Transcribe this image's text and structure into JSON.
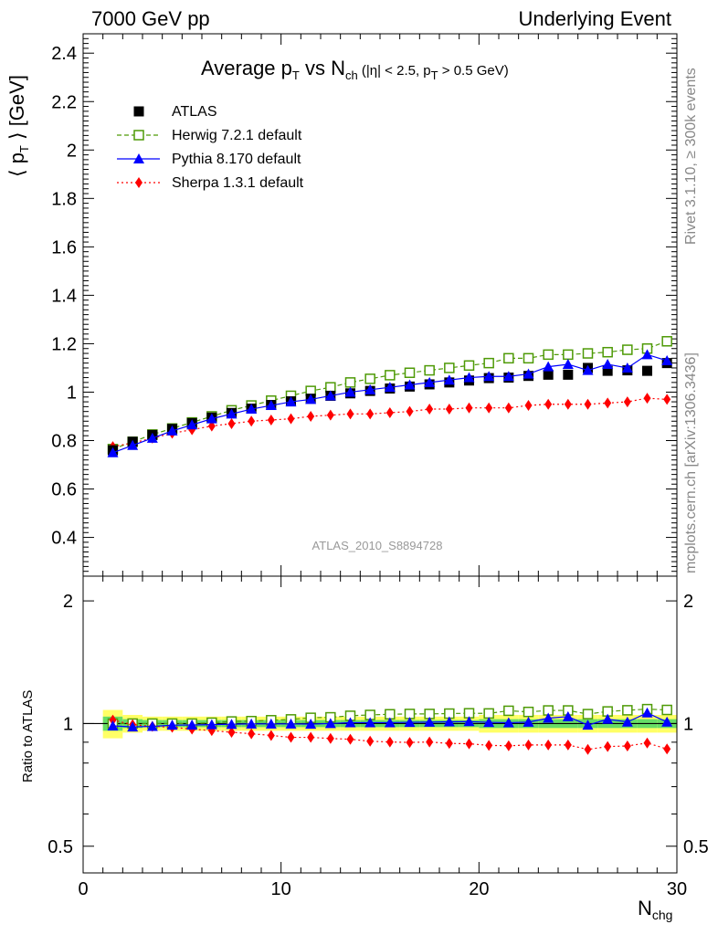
{
  "header": {
    "left": "7000 GeV pp",
    "right": "Underlying Event"
  },
  "side_labels": {
    "top": "Rivet 3.1.10, ≥ 300k events",
    "bottom": "mcplots.cern.ch [arXiv:1306.3436]"
  },
  "watermark": "ATLAS_2010_S8894728",
  "title": {
    "main": "Average p",
    "main_sub": "T",
    "vs": " vs N",
    "vs_sub": "ch",
    "cuts_a": " (|η| < 2.5, p",
    "cuts_sub": "T",
    "cuts_b": " > 0.5 GeV)"
  },
  "axis_labels": {
    "y_top_a": "⟨ p",
    "y_top_sub": "T",
    "y_top_b": " ⟩ [GeV]",
    "y_bottom": "Ratio to ATLAS",
    "x_main": "N",
    "x_sub": "chg"
  },
  "colors": {
    "atlas": "#000000",
    "herwig": "#4e9a06",
    "pythia": "#0000ff",
    "sherpa": "#ff0000",
    "band_inner": "#66dd66",
    "band_outer": "#ffff66"
  },
  "chart_data": [
    {
      "type": "scatter",
      "title": "Average pT vs Nch (|η| < 2.5, pT > 0.5 GeV)",
      "xlabel": "Nchg",
      "ylabel": "⟨ pT ⟩ [GeV]",
      "xlim": [
        0,
        30
      ],
      "ylim": [
        0.24,
        2.48
      ],
      "x_ticks": [
        0,
        10,
        20,
        30
      ],
      "y_ticks": [
        0.4,
        0.6,
        0.8,
        1.0,
        1.2,
        1.4,
        1.6,
        1.8,
        2.0,
        2.2,
        2.4
      ],
      "legend_position": "top-left",
      "x": [
        1.5,
        2.5,
        3.5,
        4.5,
        5.5,
        6.5,
        7.5,
        8.5,
        9.5,
        10.5,
        11.5,
        12.5,
        13.5,
        14.5,
        15.5,
        16.5,
        17.5,
        18.5,
        19.5,
        20.5,
        21.5,
        22.5,
        23.5,
        24.5,
        25.5,
        26.5,
        27.5,
        28.5,
        29.5
      ],
      "series": [
        {
          "name": "ATLAS",
          "style": "marker-square",
          "values": [
            0.76,
            0.795,
            0.823,
            0.848,
            0.872,
            0.895,
            0.914,
            0.932,
            0.947,
            0.962,
            0.973,
            0.985,
            0.995,
            1.005,
            1.015,
            1.023,
            1.032,
            1.04,
            1.048,
            1.058,
            1.06,
            1.067,
            1.072,
            1.072,
            1.1,
            1.088,
            1.09,
            1.088,
            1.12
          ]
        },
        {
          "name": "Herwig 7.2.1 default",
          "style": "dashed-open-square",
          "values": [
            0.765,
            0.795,
            0.825,
            0.85,
            0.875,
            0.9,
            0.925,
            0.945,
            0.965,
            0.985,
            1.005,
            1.02,
            1.04,
            1.055,
            1.07,
            1.08,
            1.09,
            1.1,
            1.11,
            1.12,
            1.14,
            1.14,
            1.155,
            1.155,
            1.16,
            1.165,
            1.175,
            1.18,
            1.21
          ]
        },
        {
          "name": "Pythia 8.170 default",
          "style": "solid-triangle",
          "values": [
            0.75,
            0.78,
            0.81,
            0.84,
            0.865,
            0.89,
            0.91,
            0.93,
            0.945,
            0.96,
            0.97,
            0.985,
            1.0,
            1.01,
            1.02,
            1.03,
            1.04,
            1.05,
            1.06,
            1.065,
            1.065,
            1.075,
            1.105,
            1.115,
            1.09,
            1.115,
            1.1,
            1.155,
            1.13
          ]
        },
        {
          "name": "Sherpa 1.3.1 default",
          "style": "dotted-diamond",
          "values": [
            0.775,
            0.79,
            0.81,
            0.83,
            0.845,
            0.86,
            0.87,
            0.88,
            0.885,
            0.89,
            0.9,
            0.905,
            0.91,
            0.91,
            0.915,
            0.92,
            0.93,
            0.93,
            0.935,
            0.935,
            0.935,
            0.945,
            0.95,
            0.95,
            0.95,
            0.955,
            0.96,
            0.975,
            0.97
          ]
        }
      ]
    },
    {
      "type": "scatter",
      "ylabel": "Ratio to ATLAS",
      "xlabel": "Nchg",
      "xlim": [
        0,
        30
      ],
      "ylim": [
        0.43,
        2.3
      ],
      "y_scale": "log",
      "x_ticks": [
        0,
        10,
        20,
        30
      ],
      "y_ticks": [
        0.5,
        1,
        2
      ],
      "x": [
        1.5,
        2.5,
        3.5,
        4.5,
        5.5,
        6.5,
        7.5,
        8.5,
        9.5,
        10.5,
        11.5,
        12.5,
        13.5,
        14.5,
        15.5,
        16.5,
        17.5,
        18.5,
        19.5,
        20.5,
        21.5,
        22.5,
        23.5,
        24.5,
        25.5,
        26.5,
        27.5,
        28.5,
        29.5
      ],
      "uncertainty_band": {
        "inner": [
          0.04,
          0.025,
          0.02,
          0.02,
          0.02,
          0.02,
          0.02,
          0.02,
          0.02,
          0.02,
          0.02,
          0.02,
          0.02,
          0.02,
          0.02,
          0.02,
          0.02,
          0.02,
          0.02,
          0.025,
          0.025,
          0.025,
          0.025,
          0.025,
          0.025,
          0.025,
          0.025,
          0.025,
          0.025
        ],
        "outer": [
          0.08,
          0.05,
          0.04,
          0.04,
          0.04,
          0.04,
          0.04,
          0.04,
          0.04,
          0.04,
          0.04,
          0.04,
          0.04,
          0.04,
          0.04,
          0.04,
          0.04,
          0.04,
          0.04,
          0.05,
          0.05,
          0.05,
          0.05,
          0.05,
          0.05,
          0.05,
          0.05,
          0.05,
          0.05
        ]
      },
      "series": [
        {
          "name": "Herwig 7.2.1 default",
          "style": "dashed-open-square",
          "values": [
            1.0,
            1.0,
            1.0,
            1.0,
            1.0,
            1.005,
            1.012,
            1.014,
            1.019,
            1.024,
            1.033,
            1.036,
            1.045,
            1.05,
            1.054,
            1.056,
            1.056,
            1.058,
            1.06,
            1.059,
            1.075,
            1.068,
            1.077,
            1.077,
            1.055,
            1.071,
            1.078,
            1.085,
            1.08
          ]
        },
        {
          "name": "Pythia 8.170 default",
          "style": "solid-triangle",
          "values": [
            0.987,
            0.981,
            0.984,
            0.991,
            0.992,
            0.994,
            0.996,
            0.998,
            0.998,
            0.998,
            0.997,
            1.0,
            1.005,
            1.005,
            1.005,
            1.007,
            1.008,
            1.01,
            1.011,
            1.007,
            1.005,
            1.008,
            1.031,
            1.04,
            0.991,
            1.025,
            1.009,
            1.062,
            1.009
          ]
        },
        {
          "name": "Sherpa 1.3.1 default",
          "style": "dotted-diamond",
          "values": [
            1.02,
            0.994,
            0.984,
            0.979,
            0.969,
            0.961,
            0.952,
            0.944,
            0.935,
            0.925,
            0.925,
            0.919,
            0.915,
            0.905,
            0.901,
            0.899,
            0.901,
            0.894,
            0.892,
            0.884,
            0.882,
            0.886,
            0.886,
            0.886,
            0.864,
            0.878,
            0.881,
            0.896,
            0.866
          ]
        }
      ]
    }
  ]
}
